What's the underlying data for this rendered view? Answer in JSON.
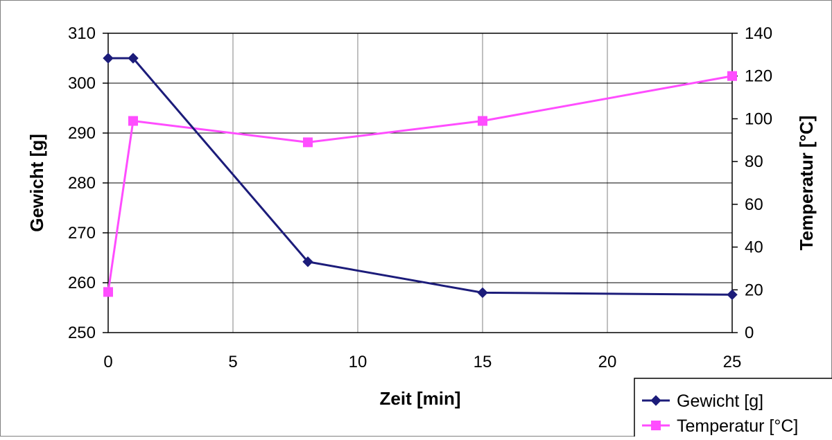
{
  "chart_data": {
    "type": "line",
    "xlabel": "Zeit [min]",
    "ylabel_left": "Gewicht [g]",
    "ylabel_right": "Temperatur [°C]",
    "x": [
      0,
      1,
      8,
      15,
      25
    ],
    "xlim": [
      0,
      25
    ],
    "xticks": [
      0,
      5,
      10,
      15,
      20,
      25
    ],
    "ylim_left": [
      250,
      310
    ],
    "yticks_left": [
      250,
      260,
      270,
      280,
      290,
      300,
      310
    ],
    "ylim_right": [
      0,
      140
    ],
    "yticks_right": [
      0,
      20,
      40,
      60,
      80,
      100,
      120,
      140
    ],
    "grid": "on",
    "legend_position": "bottom-right",
    "series": [
      {
        "name": "Gewicht [g]",
        "axis": "left",
        "marker": "diamond",
        "color": "#1c1c7a",
        "values": [
          305,
          305,
          264.2,
          258,
          257.6
        ]
      },
      {
        "name": "Temperatur [°C]",
        "axis": "right",
        "marker": "square",
        "color": "#ff4dff",
        "values": [
          19,
          99,
          89,
          99,
          120
        ]
      }
    ]
  }
}
